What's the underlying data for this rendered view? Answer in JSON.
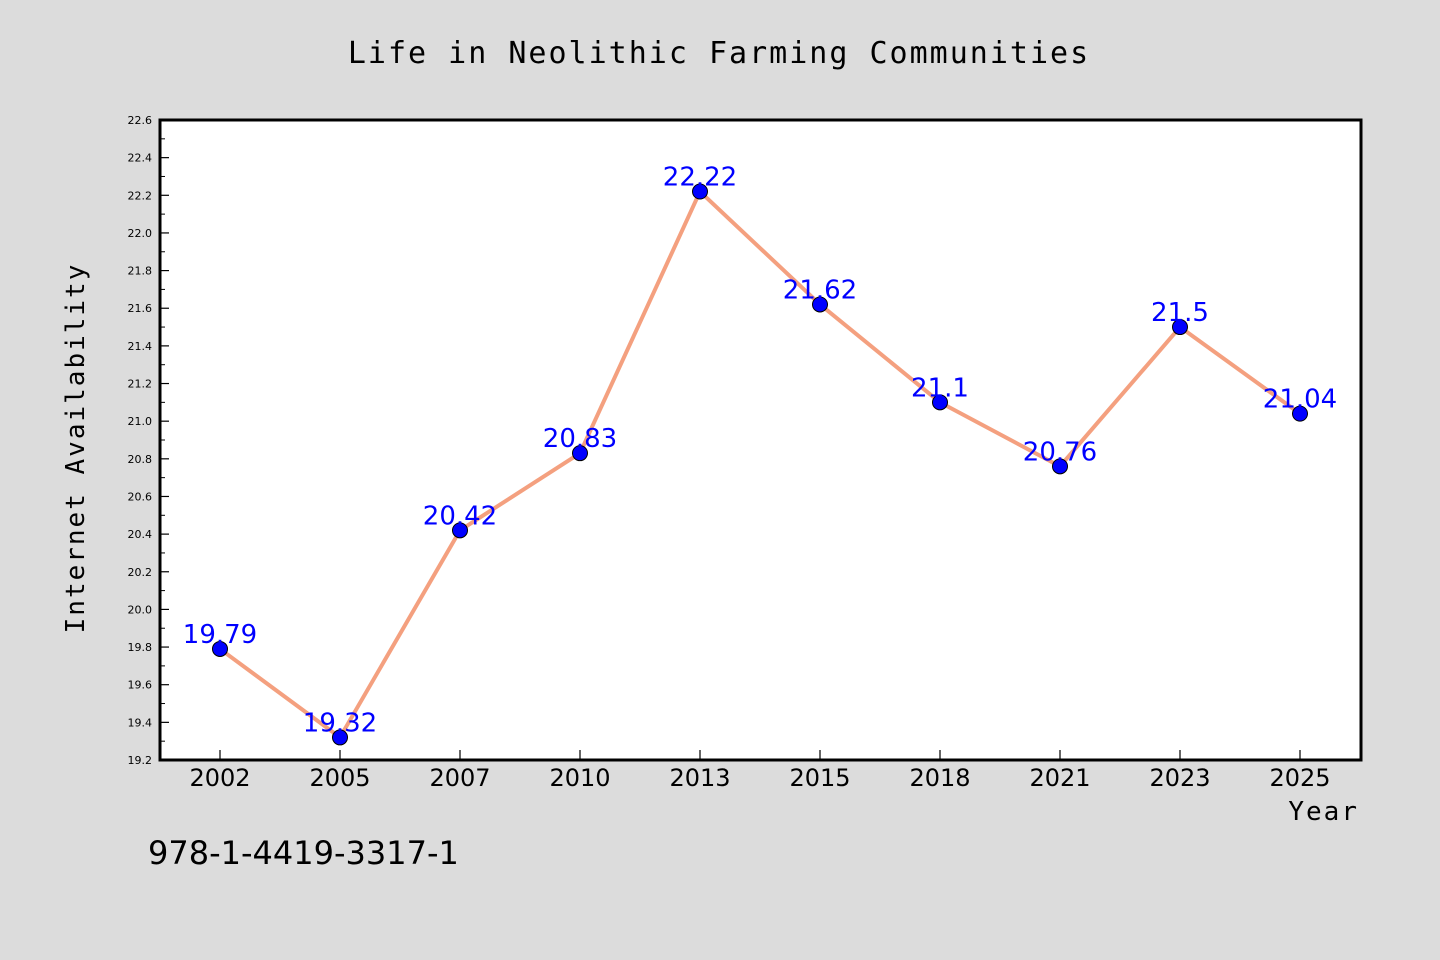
{
  "chart_data": {
    "type": "line",
    "title": "Life in Neolithic Farming Communities",
    "xlabel": "Year",
    "ylabel": "Internet Availability",
    "categories": [
      "2002",
      "2005",
      "2007",
      "2010",
      "2013",
      "2015",
      "2018",
      "2021",
      "2023",
      "2025"
    ],
    "series": [
      {
        "values": [
          19.79,
          19.32,
          20.42,
          20.83,
          22.22,
          21.62,
          21.1,
          20.76,
          21.5,
          21.04
        ],
        "labels": [
          "19.79",
          "19.32",
          "20.42",
          "20.83",
          "22.22",
          "21.62",
          "21.1",
          "20.76",
          "21.5",
          "21.04"
        ],
        "line_color": "#f4a07f",
        "marker_color": "#0000ff"
      }
    ],
    "ylim": [
      19.2,
      22.6
    ],
    "yticks": [
      "19.2",
      "19.4",
      "19.6",
      "19.8",
      "20.0",
      "20.2",
      "20.4",
      "20.6",
      "20.8",
      "21.0",
      "21.2",
      "21.4",
      "21.6",
      "21.8",
      "22.0",
      "22.2",
      "22.4",
      "22.6"
    ],
    "grid": false,
    "legend": "none"
  },
  "annotation": {
    "isbn": "978-1-4419-3317-1"
  },
  "colors": {
    "background": "#dcdcdc",
    "plot_background": "#ffffff",
    "line": "#f4a07f",
    "marker": "#0000ff",
    "data_label": "#0000ff"
  }
}
